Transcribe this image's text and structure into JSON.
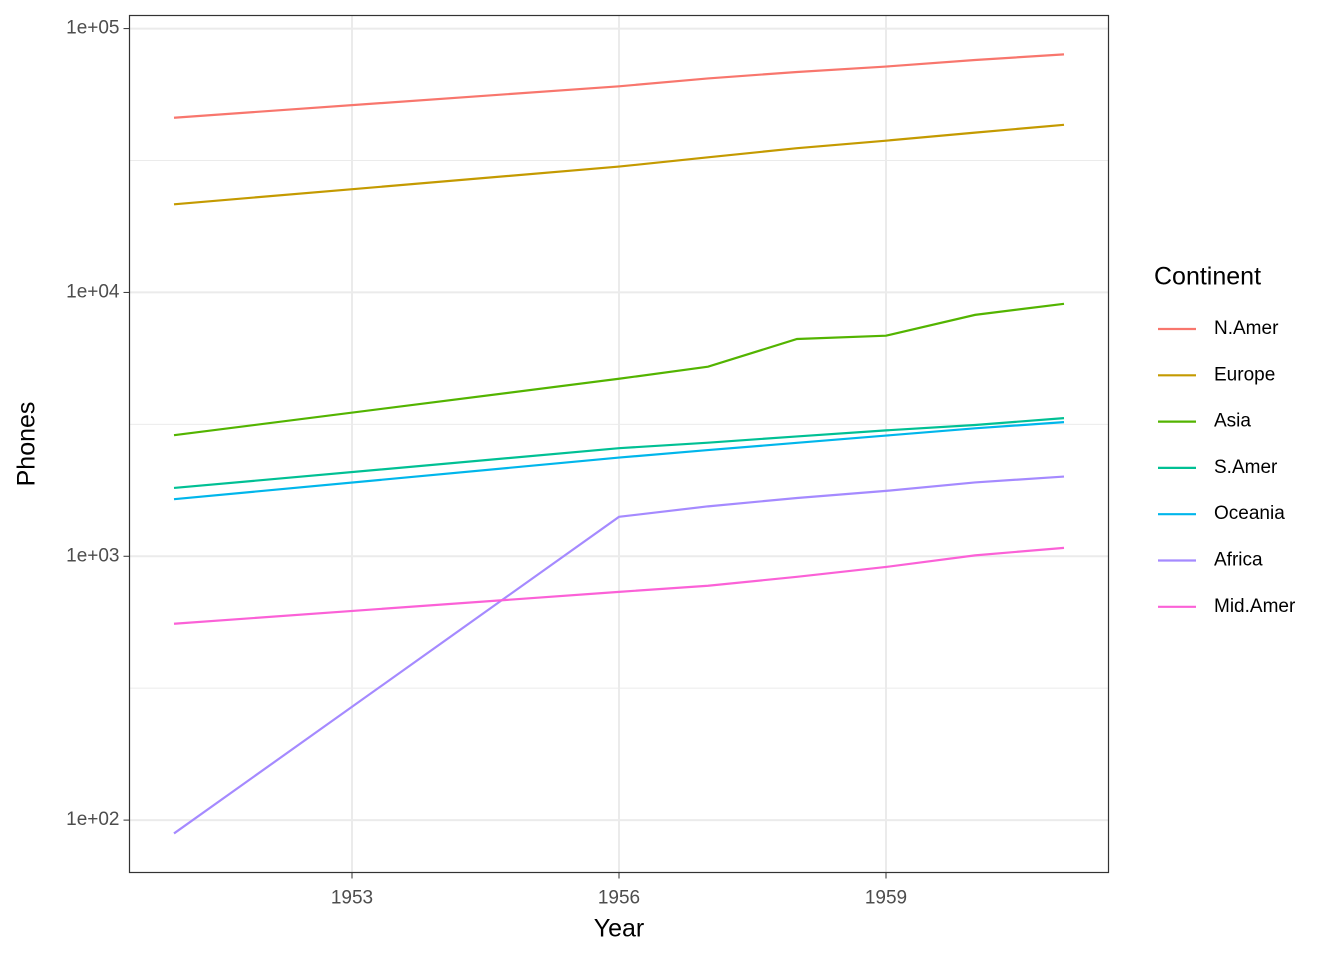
{
  "chart_data": {
    "type": "line",
    "x_label": "Year",
    "y_label": "Phones",
    "legend_title": "Continent",
    "x": [
      1951,
      1956,
      1957,
      1958,
      1959,
      1960,
      1961
    ],
    "series": [
      {
        "name": "N.Amer",
        "color": "#F8766D",
        "values": [
          45939,
          60423,
          64721,
          68484,
          71799,
          76036,
          79831
        ]
      },
      {
        "name": "Europe",
        "color": "#C49A00",
        "values": [
          21574,
          29990,
          32510,
          35218,
          37598,
          40341,
          43173
        ]
      },
      {
        "name": "Asia",
        "color": "#53B400",
        "values": [
          2876,
          4708,
          5230,
          6662,
          6856,
          8220,
          9053
        ]
      },
      {
        "name": "S.Amer",
        "color": "#00C094",
        "values": [
          1815,
          2568,
          2695,
          2845,
          3000,
          3145,
          3338
        ]
      },
      {
        "name": "Oceania",
        "color": "#00B6EB",
        "values": [
          1646,
          2366,
          2526,
          2691,
          2868,
          3054,
          3224
        ]
      },
      {
        "name": "Africa",
        "color": "#A58AFF",
        "values": [
          89,
          1411,
          1546,
          1663,
          1769,
          1905,
          2005
        ]
      },
      {
        "name": "Mid.Amer",
        "color": "#FB61D7",
        "values": [
          555,
          733,
          773,
          836,
          911,
          1008,
          1076
        ]
      }
    ],
    "xlim": [
      1950.5,
      1961.5
    ],
    "xticks": [
      1953,
      1956,
      1959
    ],
    "ylim": [
      63.3,
      112100
    ],
    "ylog": true,
    "yticks": [
      {
        "value": 100,
        "label": "1e+02"
      },
      {
        "value": 1000,
        "label": "1e+03"
      },
      {
        "value": 10000,
        "label": "1e+04"
      },
      {
        "value": 100000,
        "label": "1e+05"
      }
    ],
    "grid": true,
    "legend_position": "right"
  }
}
